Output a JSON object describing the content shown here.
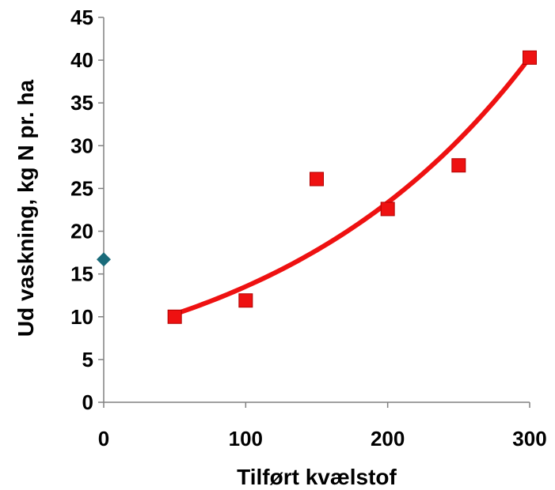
{
  "chart_data": {
    "type": "scatter",
    "title": "",
    "xlabel": "Tilført kvælstof",
    "ylabel": "Ud vaskning, kg N pr. ha",
    "xlim": [
      0,
      300
    ],
    "ylim": [
      0,
      45
    ],
    "x_ticks": [
      0,
      100,
      200,
      300
    ],
    "y_ticks": [
      0,
      5,
      10,
      15,
      20,
      25,
      30,
      35,
      40,
      45
    ],
    "grid": false,
    "legend": "none",
    "series": [
      {
        "marker": "diamond",
        "color": "#1a6b7a",
        "points": [
          [
            0,
            16.7
          ]
        ]
      },
      {
        "marker": "square",
        "color": "#ee1111",
        "points": [
          [
            50,
            10.0
          ],
          [
            100,
            11.9
          ],
          [
            150,
            26.1
          ],
          [
            200,
            22.6
          ],
          [
            250,
            27.7
          ],
          [
            300,
            40.3
          ]
        ]
      }
    ],
    "trendline": {
      "type": "exponential",
      "color": "#ee1111",
      "x_range": [
        50,
        300
      ],
      "points": [
        [
          50,
          10.3
        ],
        [
          300,
          40.3
        ]
      ]
    }
  }
}
